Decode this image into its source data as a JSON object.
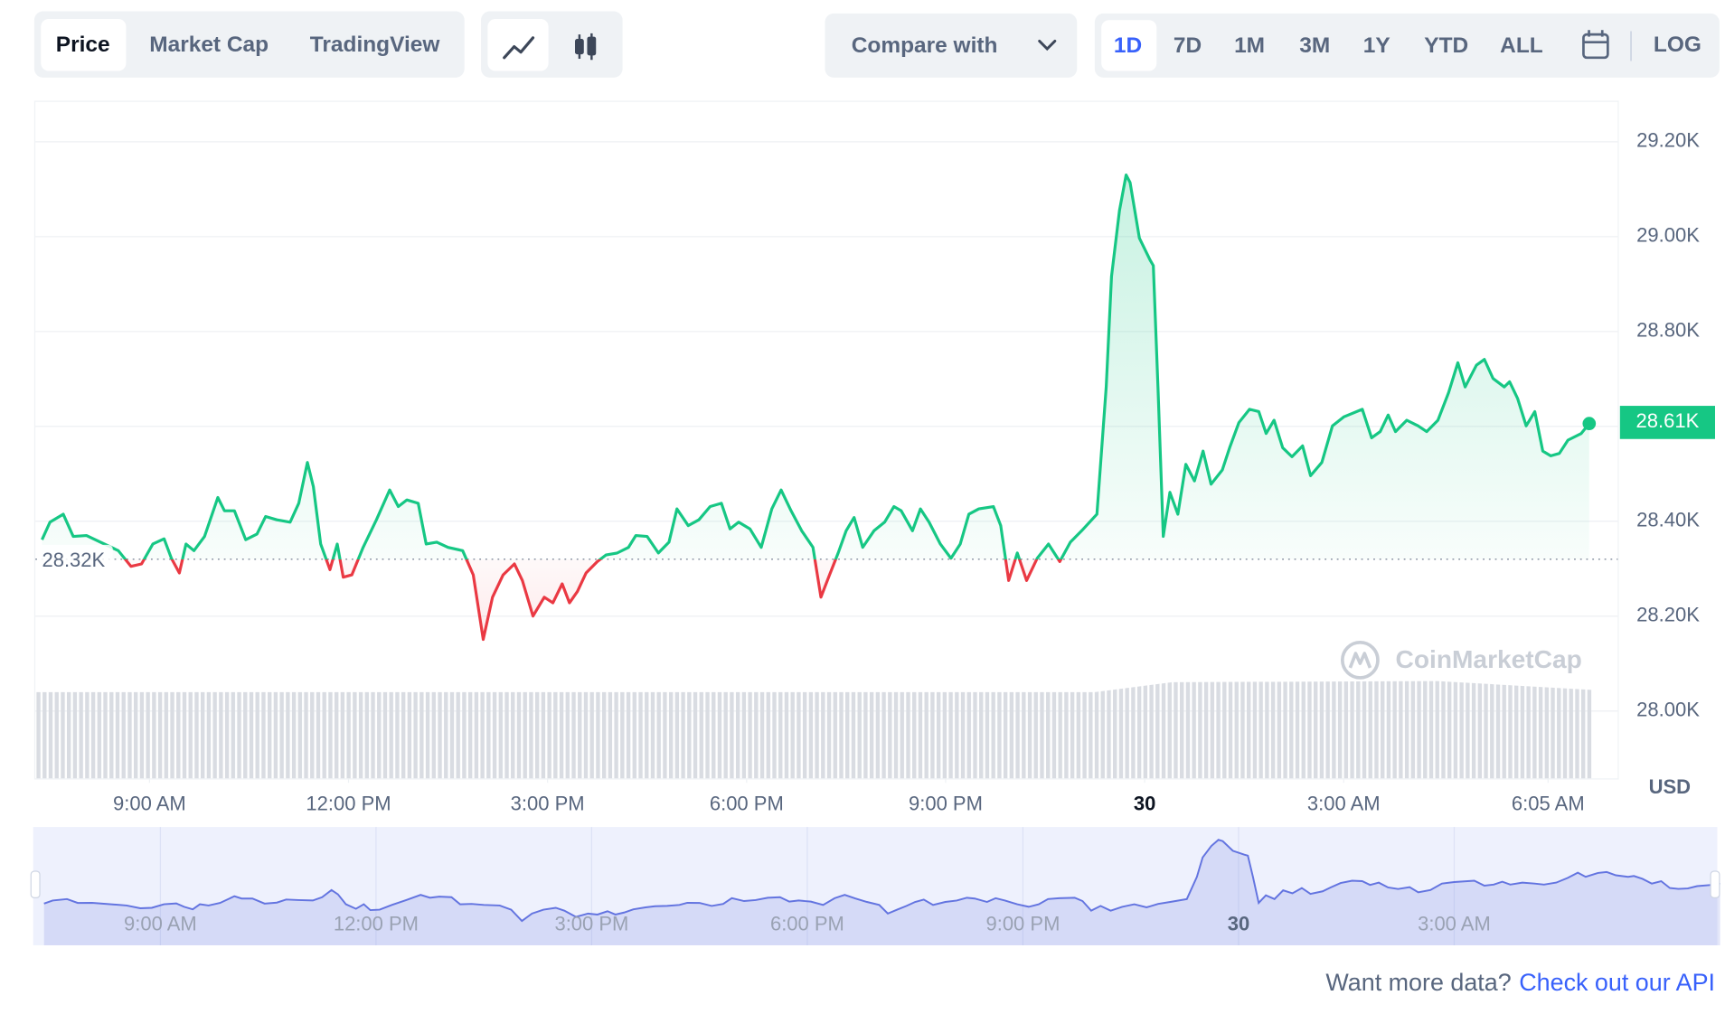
{
  "toolbar": {
    "chart_tabs": [
      "Price",
      "Market Cap",
      "TradingView"
    ],
    "compare": "Compare with",
    "ranges": [
      "1D",
      "7D",
      "1M",
      "3M",
      "1Y",
      "YTD",
      "ALL"
    ],
    "log": "LOG"
  },
  "chart_data": {
    "type": "line",
    "currency": "USD",
    "watermark": "CoinMarketCap",
    "x": [
      7.38,
      7.5,
      7.7,
      7.85,
      8.05,
      8.53,
      8.72,
      8.88,
      9.05,
      9.22,
      9.33,
      9.45,
      9.55,
      9.67,
      9.83,
      10.03,
      10.13,
      10.28,
      10.45,
      10.62,
      10.75,
      10.92,
      11.12,
      11.25,
      11.38,
      11.47,
      11.58,
      11.72,
      11.83,
      11.92,
      12.05,
      12.22,
      12.42,
      12.62,
      12.75,
      12.88,
      13.05,
      13.17,
      13.33,
      13.5,
      13.72,
      13.88,
      14.03,
      14.17,
      14.33,
      14.5,
      14.62,
      14.78,
      14.95,
      15.08,
      15.22,
      15.33,
      15.45,
      15.58,
      15.75,
      15.88,
      16.05,
      16.22,
      16.33,
      16.5,
      16.67,
      16.83,
      16.95,
      17.12,
      17.28,
      17.45,
      17.62,
      17.75,
      17.88,
      18.05,
      18.22,
      18.38,
      18.52,
      18.67,
      18.83,
      19,
      19.12,
      19.25,
      19.38,
      19.5,
      19.62,
      19.75,
      19.92,
      20.08,
      20.22,
      20.33,
      20.5,
      20.62,
      20.75,
      20.92,
      21.08,
      21.22,
      21.35,
      21.5,
      21.72,
      21.83,
      21.95,
      22.08,
      22.22,
      22.38,
      22.55,
      22.72,
      22.88,
      23.05,
      23.28,
      23.42,
      23.5,
      23.62,
      23.72,
      23.78,
      23.92,
      24.08,
      24.13,
      24.2,
      24.28,
      24.38,
      24.5,
      24.62,
      24.75,
      24.88,
      25,
      25.17,
      25.28,
      25.42,
      25.58,
      25.72,
      25.83,
      25.95,
      26.08,
      26.22,
      26.38,
      26.5,
      26.67,
      26.83,
      27,
      27.28,
      27.42,
      27.55,
      27.67,
      27.78,
      27.95,
      28.12,
      28.25,
      28.42,
      28.58,
      28.72,
      28.83,
      29,
      29.12,
      29.25,
      29.42,
      29.5,
      29.62,
      29.75,
      29.88,
      30,
      30.12,
      30.25,
      30.38,
      30.58,
      30.7
    ],
    "series": [
      {
        "name": "Price",
        "up_color": "#16c784",
        "down_color": "#ea3943",
        "values": [
          28361,
          28398,
          28415,
          28368,
          28370,
          28338,
          28305,
          28310,
          28352,
          28363,
          28322,
          28291,
          28352,
          28338,
          28368,
          28450,
          28422,
          28422,
          28361,
          28373,
          28410,
          28403,
          28398,
          28438,
          28524,
          28473,
          28352,
          28298,
          28352,
          28282,
          28287,
          28345,
          28403,
          28466,
          28431,
          28445,
          28438,
          28352,
          28356,
          28345,
          28338,
          28287,
          28151,
          28240,
          28287,
          28310,
          28275,
          28200,
          28240,
          28228,
          28268,
          28228,
          28252,
          28291,
          28315,
          28329,
          28333,
          28345,
          28370,
          28368,
          28333,
          28356,
          28426,
          28391,
          28403,
          28431,
          28438,
          28384,
          28398,
          28384,
          28345,
          28426,
          28466,
          28422,
          28380,
          28345,
          28240,
          28287,
          28333,
          28380,
          28408,
          28345,
          28380,
          28398,
          28431,
          28422,
          28380,
          28426,
          28398,
          28352,
          28322,
          28352,
          28415,
          28426,
          28431,
          28391,
          28275,
          28333,
          28275,
          28322,
          28352,
          28315,
          28356,
          28380,
          28415,
          28683,
          28916,
          29055,
          29130,
          29114,
          28997,
          28951,
          28939,
          28683,
          28368,
          28461,
          28415,
          28520,
          28485,
          28548,
          28478,
          28508,
          28555,
          28608,
          28636,
          28631,
          28585,
          28613,
          28555,
          28536,
          28559,
          28496,
          28524,
          28601,
          28620,
          28636,
          28576,
          28589,
          28624,
          28589,
          28613,
          28601,
          28589,
          28613,
          28671,
          28734,
          28683,
          28729,
          28741,
          28701,
          28683,
          28694,
          28659,
          28601,
          28631,
          28548,
          28538,
          28543,
          28571,
          28585,
          28606
        ]
      }
    ],
    "current_price_label": "28.61K",
    "baseline": {
      "value": 28320,
      "label": "28.32K"
    },
    "xlim": [
      7.28,
      31.13
    ],
    "xticks": [
      {
        "value": 9,
        "label": "9:00 AM"
      },
      {
        "value": 12,
        "label": "12:00 PM"
      },
      {
        "value": 15,
        "label": "3:00 PM"
      },
      {
        "value": 18,
        "label": "6:00 PM"
      },
      {
        "value": 21,
        "label": "9:00 PM"
      },
      {
        "value": 24,
        "label": "30"
      },
      {
        "value": 27,
        "label": "3:00 AM"
      },
      {
        "value": 30.08,
        "label": "6:05 AM"
      }
    ],
    "ylim": [
      27858,
      29284
    ],
    "yticks": [
      {
        "value": 28000,
        "label": "28.00K"
      },
      {
        "value": 28200,
        "label": "28.20K"
      },
      {
        "value": 28400,
        "label": "28.40K"
      },
      {
        "value": 28600,
        "label": "28.60K"
      },
      {
        "value": 28800,
        "label": "28.80K"
      },
      {
        "value": 29000,
        "label": "29.00K"
      },
      {
        "value": 29200,
        "label": "29.20K"
      }
    ],
    "grid": true,
    "navigator": {
      "xlim": [
        7.23,
        30.66
      ],
      "color": "#6374e0",
      "xticks": [
        {
          "value": 9,
          "label": "9:00 AM"
        },
        {
          "value": 12,
          "label": "12:00 PM"
        },
        {
          "value": 15,
          "label": "3:00 PM"
        },
        {
          "value": 18,
          "label": "6:00 PM"
        },
        {
          "value": 21,
          "label": "9:00 PM"
        },
        {
          "value": 24,
          "label": "30"
        },
        {
          "value": 27,
          "label": "3:00 AM"
        }
      ]
    }
  },
  "footer": {
    "prompt": "Want more data?",
    "link": "Check out our API"
  }
}
